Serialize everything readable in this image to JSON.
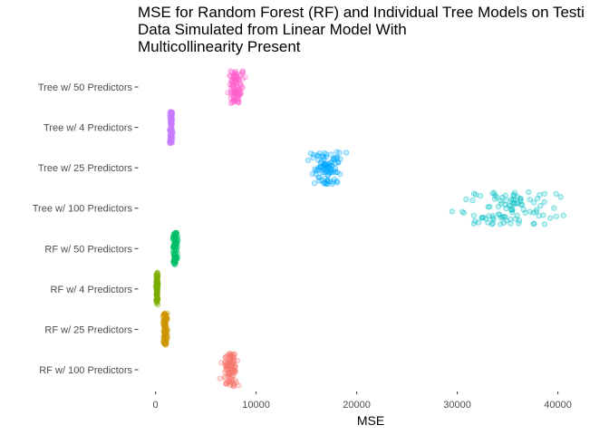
{
  "chart_data": {
    "type": "scatter",
    "title_lines": [
      "MSE for Random Forest (RF) and Individual Tree Models on Testi",
      "Data Simulated from Linear Model With",
      "Multicollinearity Present"
    ],
    "xlabel": "MSE",
    "ylabel": "",
    "xlim": [
      -1500,
      44000
    ],
    "x_ticks": [
      0,
      10000,
      20000,
      30000,
      40000
    ],
    "x_tick_labels": [
      "0",
      "10000",
      "20000",
      "30000",
      "40000"
    ],
    "grid": false,
    "legend": "none",
    "categories": [
      "RF w/ 100 Predictors",
      "RF w/ 25 Predictors",
      "RF w/ 4 Predictors",
      "RF w/ 50 Predictors",
      "Tree w/ 100 Predictors",
      "Tree w/ 25 Predictors",
      "Tree w/ 4 Predictors",
      "Tree w/ 50 Predictors"
    ],
    "series": [
      {
        "category": "RF w/ 100 Predictors",
        "color": "#F8766D",
        "x_range": [
          6100,
          8700
        ],
        "n": 100
      },
      {
        "category": "RF w/ 25 Predictors",
        "color": "#CD9600",
        "x_range": [
          600,
          1300
        ],
        "n": 100
      },
      {
        "category": "RF w/ 4 Predictors",
        "color": "#7CAE00",
        "x_range": [
          0,
          300
        ],
        "n": 100
      },
      {
        "category": "RF w/ 50 Predictors",
        "color": "#00BE67",
        "x_range": [
          1500,
          2400
        ],
        "n": 100
      },
      {
        "category": "Tree w/ 100 Predictors",
        "color": "#00BFC4",
        "x_range": [
          27000,
          42800
        ],
        "n": 100
      },
      {
        "category": "Tree w/ 25 Predictors",
        "color": "#00A9FF",
        "x_range": [
          14300,
          19500
        ],
        "n": 100
      },
      {
        "category": "Tree w/ 4 Predictors",
        "color": "#C77CFF",
        "x_range": [
          1300,
          1800
        ],
        "n": 100
      },
      {
        "category": "Tree w/ 50 Predictors",
        "color": "#FF61CC",
        "x_range": [
          6900,
          9100
        ],
        "n": 100
      }
    ]
  }
}
